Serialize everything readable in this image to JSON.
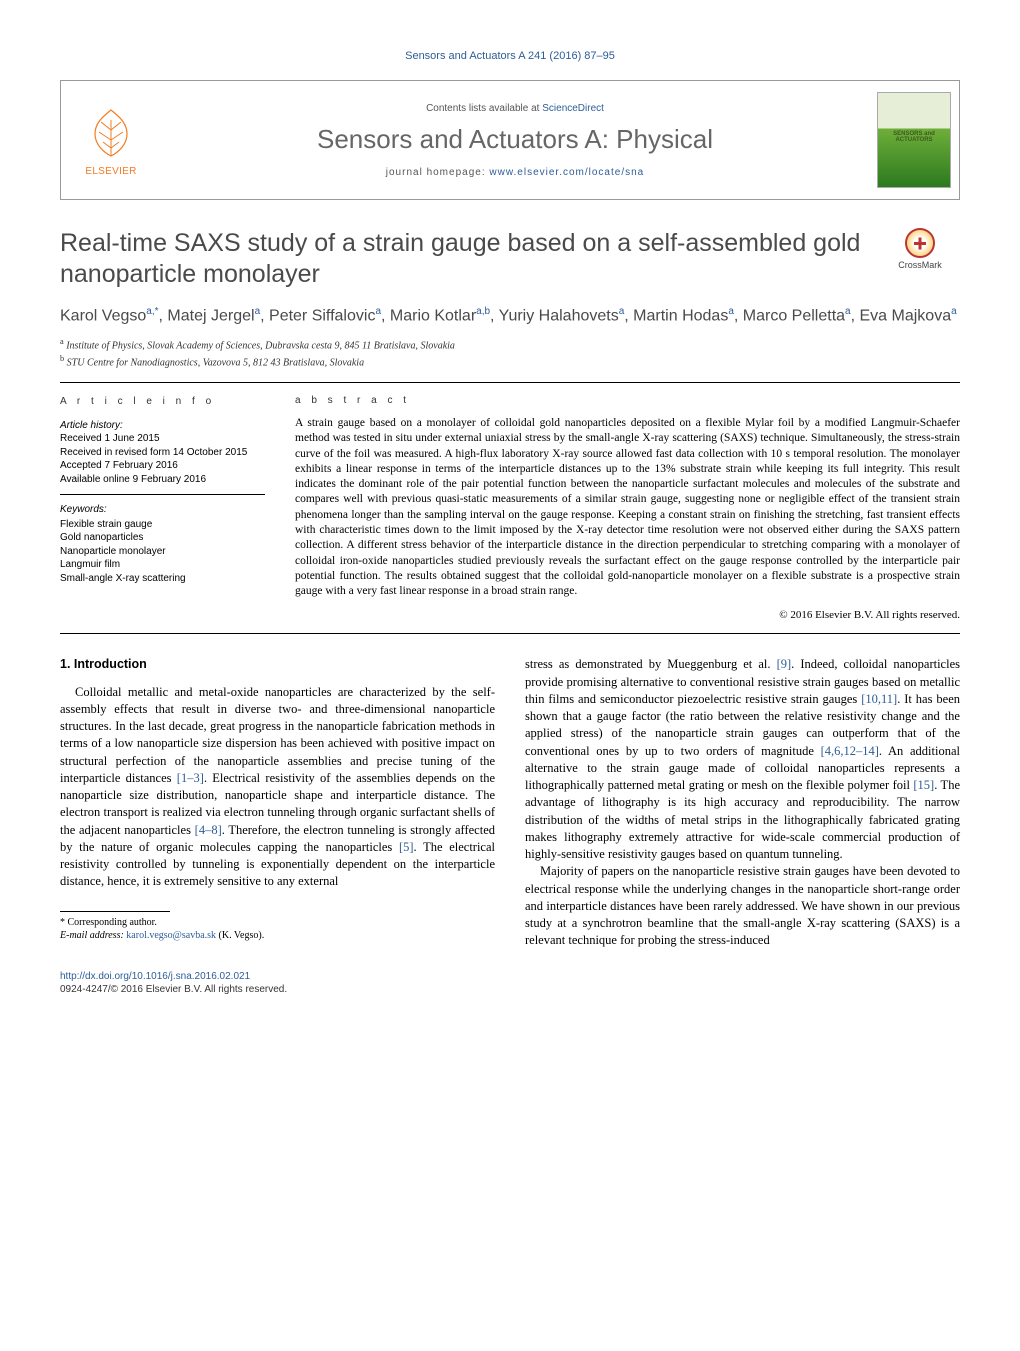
{
  "running_head": "Sensors and Actuators A 241 (2016) 87–95",
  "header": {
    "publisher_name": "ELSEVIER",
    "contents_prefix": "Contents lists available at ",
    "contents_link": "ScienceDirect",
    "journal_name": "Sensors and Actuators A: Physical",
    "homepage_prefix": "journal homepage: ",
    "homepage_link": "www.elsevier.com/locate/sna",
    "cover_label_line1": "SENSORS and",
    "cover_label_line2": "ACTUATORS"
  },
  "crossmark_label": "CrossMark",
  "title": "Real-time SAXS study of a strain gauge based on a self-assembled gold nanoparticle monolayer",
  "authors_html": "Karol Vegso<sup>a,*</sup>, Matej Jergel<sup>a</sup>, Peter Siffalovic<sup>a</sup>, Mario Kotlar<sup>a,b</sup>, Yuriy Halahovets<sup>a</sup>, Martin Hodas<sup>a</sup>, Marco Pelletta<sup>a</sup>, Eva Majkova<sup>a</sup>",
  "affiliations": [
    {
      "sup": "a",
      "text": " Institute of Physics, Slovak Academy of Sciences, Dubravska cesta 9, 845 11 Bratislava, Slovakia"
    },
    {
      "sup": "b",
      "text": " STU Centre for Nanodiagnostics, Vazovova 5, 812 43 Bratislava, Slovakia"
    }
  ],
  "article_info": {
    "heading": "a r t i c l e   i n f o",
    "history_head": "Article history:",
    "history": [
      "Received 1 June 2015",
      "Received in revised form 14 October 2015",
      "Accepted 7 February 2016",
      "Available online 9 February 2016"
    ],
    "keywords_head": "Keywords:",
    "keywords": [
      "Flexible strain gauge",
      "Gold nanoparticles",
      "Nanoparticle monolayer",
      "Langmuir film",
      "Small-angle X-ray scattering"
    ]
  },
  "abstract": {
    "heading": "a b s t r a c t",
    "text": "A strain gauge based on a monolayer of colloidal gold nanoparticles deposited on a flexible Mylar foil by a modified Langmuir-Schaefer method was tested in situ under external uniaxial stress by the small-angle X-ray scattering (SAXS) technique. Simultaneously, the stress-strain curve of the foil was measured. A high-flux laboratory X-ray source allowed fast data collection with 10 s temporal resolution. The monolayer exhibits a linear response in terms of the interparticle distances up to the 13% substrate strain while keeping its full integrity. This result indicates the dominant role of the pair potential function between the nanoparticle surfactant molecules and molecules of the substrate and compares well with previous quasi-static measurements of a similar strain gauge, suggesting none or negligible effect of the transient strain phenomena longer than the sampling interval on the gauge response. Keeping a constant strain on finishing the stretching, fast transient effects with characteristic times down to the limit imposed by the X-ray detector time resolution were not observed either during the SAXS pattern collection. A different stress behavior of the interparticle distance in the direction perpendicular to stretching comparing with a monolayer of colloidal iron-oxide nanoparticles studied previously reveals the surfactant effect on the gauge response controlled by the interparticle pair potential function. The results obtained suggest that the colloidal gold-nanoparticle monolayer on a flexible substrate is a prospective strain gauge with a very fast linear response in a broad strain range.",
    "copyright": "© 2016 Elsevier B.V. All rights reserved."
  },
  "intro": {
    "heading": "1.  Introduction",
    "p1_a": "Colloidal metallic and metal-oxide nanoparticles are characterized by the self-assembly effects that result in diverse two- and three-dimensional nanoparticle structures. In the last decade, great progress in the nanoparticle fabrication methods in terms of a low nanoparticle size dispersion has been achieved with positive impact on structural perfection of the nanoparticle assemblies and precise tuning of the interparticle distances ",
    "r1": "[1–3]",
    "p1_b": ". Electrical resistivity of the assemblies depends on the nanoparticle size distribution, nanoparticle shape and interparticle distance. The electron transport is realized via electron tunneling through organic surfactant shells of the adjacent nanoparticles ",
    "r2": "[4–8]",
    "p1_c": ". Therefore, the electron tunneling is strongly affected by the nature of organic molecules capping the nanoparticles ",
    "r3": "[5]",
    "p1_d": ". The electrical resistivity controlled by tunneling is exponentially dependent on the interparticle distance, hence, it is extremely sensitive to any external ",
    "p1_e": "stress as demonstrated by Mueggenburg et al. ",
    "r4": "[9]",
    "p1_f": ". Indeed, colloidal nanoparticles provide promising alternative to conventional resistive strain gauges based on metallic thin films and semiconductor piezoelectric resistive strain gauges ",
    "r5": "[10,11]",
    "p1_g": ". It has been shown that a gauge factor (the ratio between the relative resistivity change and the applied stress) of the nanoparticle strain gauges can outperform that of the conventional ones by up to two orders of magnitude ",
    "r6": "[4,6,12–14]",
    "p1_h": ". An additional alternative to the strain gauge made of colloidal nanoparticles represents a lithographically patterned metal grating or mesh on the flexible polymer foil ",
    "r7": "[15]",
    "p1_i": ". The advantage of lithography is its high accuracy and reproducibility. The narrow distribution of the widths of metal strips in the lithographically fabricated grating makes lithography extremely attractive for wide-scale commercial production of highly-sensitive resistivity gauges based on quantum tunneling.",
    "p2": "Majority of papers on the nanoparticle resistive strain gauges have been devoted to electrical response while the underlying changes in the nanoparticle short-range order and interparticle distances have been rarely addressed. We have shown in our previous study at a synchrotron beamline that the small-angle X-ray scattering (SAXS) is a relevant technique for probing the stress-induced"
  },
  "footnotes": {
    "corr": "* Corresponding author.",
    "email_label": "E-mail address: ",
    "email": "karol.vegso@savba.sk",
    "email_tail": " (K. Vegso)."
  },
  "doi": {
    "link": "http://dx.doi.org/10.1016/j.sna.2016.02.021",
    "issn_copyright": "0924-4247/© 2016 Elsevier B.V. All rights reserved."
  },
  "colors": {
    "link": "#2d5c98",
    "publisher": "#f47b20",
    "heading_grey": "#4a4a4a"
  }
}
